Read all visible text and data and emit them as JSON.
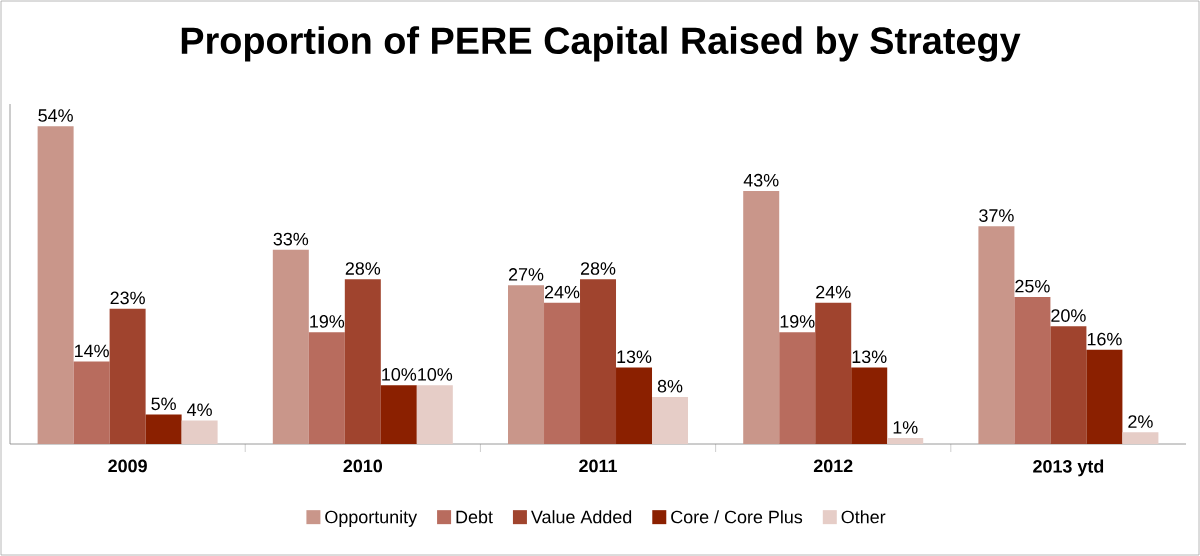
{
  "chart_data": {
    "type": "bar",
    "title": "Proportion of PERE Capital Raised by Strategy",
    "categories": [
      "2009",
      "2010",
      "2011",
      "2012",
      "2013 ytd"
    ],
    "series": [
      {
        "name": "Opportunity",
        "color": "#c9968a",
        "values": [
          54,
          33,
          27,
          43,
          37
        ],
        "value_labels": [
          "54%",
          "33%",
          "27%",
          "43%",
          "37%"
        ]
      },
      {
        "name": "Debt",
        "color": "#b86c5e",
        "values": [
          14,
          19,
          24,
          19,
          25
        ],
        "value_labels": [
          "14%",
          "19%",
          "24%",
          "19%",
          "25%"
        ]
      },
      {
        "name": "Value Added",
        "color": "#a0442e",
        "values": [
          23,
          28,
          28,
          24,
          20
        ],
        "value_labels": [
          "23%",
          "28%",
          "28%",
          "24%",
          "20%"
        ]
      },
      {
        "name": "Core / Core Plus",
        "color": "#8b2000",
        "values": [
          5,
          10,
          13,
          13,
          16
        ],
        "value_labels": [
          "5%",
          "10%",
          "13%",
          "13%",
          "16%"
        ]
      },
      {
        "name": "Other",
        "color": "#e6cdc7",
        "values": [
          4,
          10,
          8,
          1,
          2
        ],
        "value_labels": [
          "4%",
          "10%",
          "8%",
          "1%",
          "2%"
        ]
      }
    ],
    "legend": "bottom"
  }
}
